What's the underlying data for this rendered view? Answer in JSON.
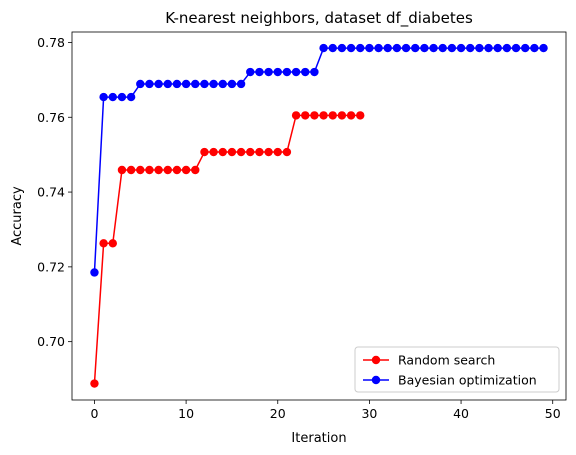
{
  "chart_data": {
    "type": "line",
    "title": "K-nearest neighbors, dataset df_diabetes",
    "xlabel": "Iteration",
    "ylabel": "Accuracy",
    "xlim": [
      -2.45,
      51.45
    ],
    "ylim": [
      0.6844,
      0.7828
    ],
    "x_ticks": [
      0,
      10,
      20,
      30,
      40,
      50
    ],
    "y_ticks": [
      0.7,
      0.72,
      0.74,
      0.76,
      0.78
    ],
    "y_tick_labels": [
      "0.70",
      "0.72",
      "0.74",
      "0.76",
      "0.78"
    ],
    "grid": false,
    "legend_position": "lower-right",
    "series": [
      {
        "name": "Random search",
        "color": "#ff0000",
        "marker": "circle",
        "x": [
          0,
          1,
          2,
          3,
          4,
          5,
          6,
          7,
          8,
          9,
          10,
          11,
          12,
          13,
          14,
          15,
          16,
          17,
          18,
          19,
          20,
          21,
          22,
          23,
          24,
          25,
          26,
          27,
          28,
          29
        ],
        "values": [
          0.6888,
          0.7263,
          0.7263,
          0.7459,
          0.7459,
          0.7459,
          0.7459,
          0.7459,
          0.7459,
          0.7459,
          0.7459,
          0.7459,
          0.7507,
          0.7507,
          0.7507,
          0.7507,
          0.7507,
          0.7507,
          0.7507,
          0.7507,
          0.7507,
          0.7507,
          0.7605,
          0.7605,
          0.7605,
          0.7605,
          0.7605,
          0.7605,
          0.7605,
          0.7605
        ]
      },
      {
        "name": "Bayesian optimization",
        "color": "#0000ff",
        "marker": "circle",
        "x": [
          0,
          1,
          2,
          3,
          4,
          5,
          6,
          7,
          8,
          9,
          10,
          11,
          12,
          13,
          14,
          15,
          16,
          17,
          18,
          19,
          20,
          21,
          22,
          23,
          24,
          25,
          26,
          27,
          28,
          29,
          30,
          31,
          32,
          33,
          34,
          35,
          36,
          37,
          38,
          39,
          40,
          41,
          42,
          43,
          44,
          45,
          46,
          47,
          48,
          49
        ],
        "values": [
          0.7185,
          0.7654,
          0.7654,
          0.7654,
          0.7654,
          0.7689,
          0.7689,
          0.7689,
          0.7689,
          0.7689,
          0.7689,
          0.7689,
          0.7689,
          0.7689,
          0.7689,
          0.7689,
          0.7689,
          0.7721,
          0.7721,
          0.7721,
          0.7721,
          0.7721,
          0.7721,
          0.7721,
          0.7721,
          0.7785,
          0.7785,
          0.7785,
          0.7785,
          0.7785,
          0.7785,
          0.7785,
          0.7785,
          0.7785,
          0.7785,
          0.7785,
          0.7785,
          0.7785,
          0.7785,
          0.7785,
          0.7785,
          0.7785,
          0.7785,
          0.7785,
          0.7785,
          0.7785,
          0.7785,
          0.7785,
          0.7785,
          0.7785
        ]
      }
    ]
  }
}
